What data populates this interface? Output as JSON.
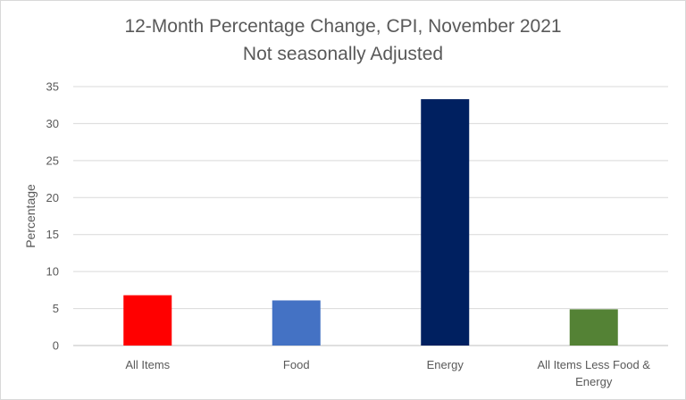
{
  "chart_data": {
    "type": "bar",
    "title": "12-Month Percentage Change, CPI, November 2021",
    "subtitle": "Not seasonally Adjusted",
    "xlabel": "",
    "ylabel": "Percentage",
    "ylim": [
      0,
      35
    ],
    "yticks": [
      "0",
      "5",
      "10",
      "15",
      "20",
      "25",
      "30",
      "35"
    ],
    "grid": true,
    "legend": "none",
    "categories": [
      [
        "All Items"
      ],
      [
        "Food"
      ],
      [
        "Energy"
      ],
      [
        "All Items Less Food &",
        "Energy"
      ]
    ],
    "values": [
      6.8,
      6.1,
      33.3,
      4.9
    ],
    "colors": [
      "#ff0000",
      "#4472c4",
      "#002060",
      "#548235"
    ]
  }
}
